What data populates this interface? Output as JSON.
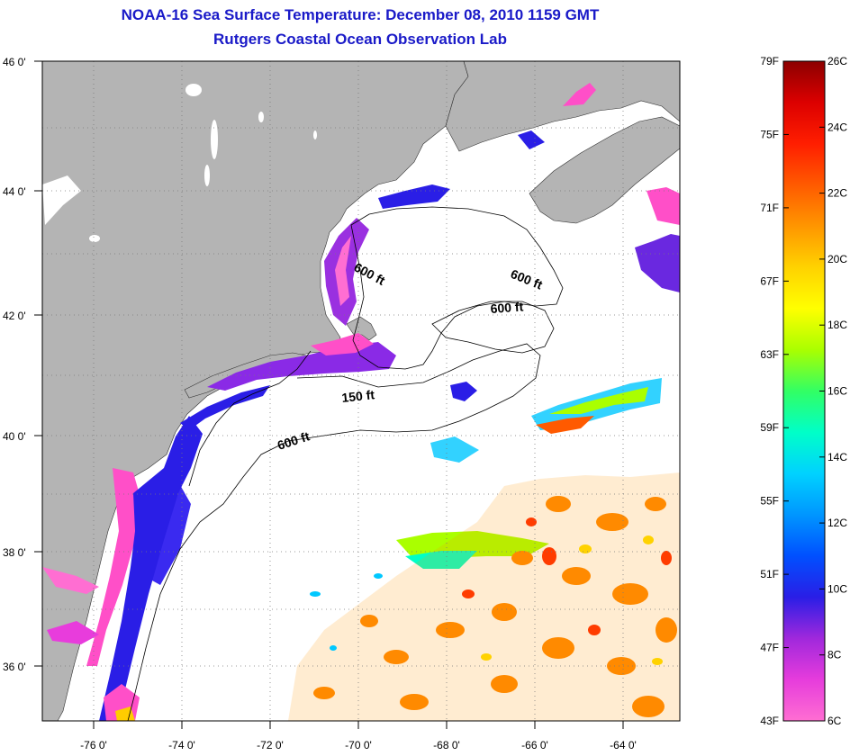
{
  "title": {
    "line1": "NOAA-16 Sea Surface Temperature:  December 08, 2010 1159 GMT",
    "line2": "Rutgers Coastal Ocean Observation Lab"
  },
  "map": {
    "lon_ticks": [
      "-76 0'",
      "-74 0'",
      "-72 0'",
      "-70 0'",
      "-68 0'",
      "-66 0'",
      "-64 0'"
    ],
    "lat_ticks": [
      "46 0'",
      "44 0'",
      "42 0'",
      "40 0'",
      "38 0'",
      "36 0'"
    ],
    "contour_labels": [
      "600 ft",
      "600 ft",
      "600 ft",
      "150 ft",
      "600 ft"
    ],
    "colors": {
      "land": "#b4b4b4",
      "water": "#ffffff",
      "grid": "#7a7a7a"
    }
  },
  "colorbar": {
    "f_labels": [
      "79F",
      "75F",
      "71F",
      "67F",
      "63F",
      "59F",
      "55F",
      "51F",
      "47F",
      "43F"
    ],
    "c_labels": [
      "26C",
      "24C",
      "22C",
      "20C",
      "18C",
      "16C",
      "14C",
      "12C",
      "10C",
      "8C",
      "6C"
    ],
    "f_range": [
      43,
      79
    ],
    "c_range": [
      6,
      26
    ],
    "gradient": [
      "#ff6ed2",
      "#e63cdc",
      "#a028dc",
      "#2a1ee6",
      "#0050ff",
      "#0096ff",
      "#00d2ff",
      "#00ffc8",
      "#32ff64",
      "#aaff00",
      "#ffff00",
      "#ffd200",
      "#ff9600",
      "#ff5a00",
      "#ff1e00",
      "#dc0000",
      "#8c0000"
    ]
  }
}
